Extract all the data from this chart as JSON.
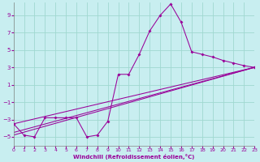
{
  "xlabel": "Windchill (Refroidissement éolien,°C)",
  "background_color": "#c8eef0",
  "grid_color": "#a0d8d0",
  "line_color": "#990099",
  "x_min": 0,
  "x_max": 23,
  "y_min": -6,
  "y_max": 10.5,
  "yticks": [
    -5,
    -3,
    -1,
    1,
    3,
    5,
    7,
    9
  ],
  "xticks": [
    0,
    1,
    2,
    3,
    4,
    5,
    6,
    7,
    8,
    9,
    10,
    11,
    12,
    13,
    14,
    15,
    16,
    17,
    18,
    19,
    20,
    21,
    22,
    23
  ],
  "line1_x": [
    0,
    1,
    2,
    3,
    4,
    5,
    6,
    7,
    8,
    9,
    10,
    11,
    12,
    13,
    14,
    15,
    16,
    17,
    18,
    19,
    20,
    21,
    22,
    23
  ],
  "line1_y": [
    -3.5,
    -4.8,
    -5.0,
    -2.8,
    -2.8,
    -2.8,
    -2.8,
    -5.0,
    -4.8,
    -3.2,
    2.2,
    2.2,
    4.5,
    7.2,
    9.0,
    10.3,
    8.2,
    4.8,
    4.5,
    4.2,
    3.8,
    3.5,
    3.2,
    3.0
  ],
  "line2_x": [
    0,
    23
  ],
  "line2_y": [
    -4.8,
    3.0
  ],
  "line3_x": [
    0,
    23
  ],
  "line3_y": [
    -4.5,
    3.0
  ],
  "line4_x": [
    0,
    23
  ],
  "line4_y": [
    -3.5,
    3.0
  ]
}
